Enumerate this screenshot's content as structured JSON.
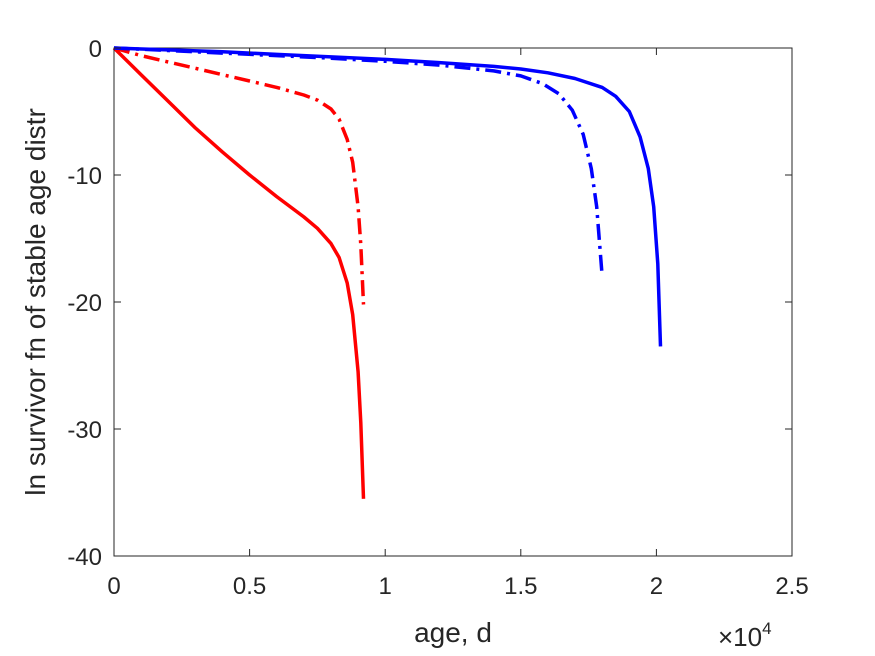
{
  "chart_data": {
    "type": "line",
    "title": "",
    "xlabel": "age, d",
    "ylabel": "ln survivor fn of stable age distr",
    "x_multiplier": {
      "base": "×10",
      "exponent": "4"
    },
    "xlim": [
      0,
      25000
    ],
    "ylim": [
      -40,
      0
    ],
    "xticks": [
      0,
      5000,
      10000,
      15000,
      20000,
      25000
    ],
    "xtick_labels": [
      "0",
      "0.5",
      "1",
      "1.5",
      "2",
      "2.5"
    ],
    "yticks": [
      -40,
      -30,
      -20,
      -10,
      0
    ],
    "ytick_labels": [
      "-40",
      "-30",
      "-20",
      "-10",
      "0"
    ],
    "grid": false,
    "legend": "none",
    "series": [
      {
        "color": "#ff0000",
        "style": "solid",
        "x": [
          0,
          1000,
          2000,
          3000,
          4000,
          5000,
          6000,
          7000,
          7500,
          8000,
          8300,
          8600,
          8800,
          9000,
          9100,
          9200
        ],
        "y": [
          0,
          -2.1,
          -4.2,
          -6.3,
          -8.2,
          -10.0,
          -11.7,
          -13.3,
          -14.2,
          -15.4,
          -16.5,
          -18.5,
          -21.0,
          -25.5,
          -29.5,
          -35.5
        ]
      },
      {
        "color": "#ff0000",
        "style": "dashdot",
        "x": [
          0,
          1000,
          2000,
          3000,
          4000,
          5000,
          6000,
          7000,
          7500,
          8000,
          8300,
          8600,
          8800,
          9000,
          9100,
          9200
        ],
        "y": [
          0,
          -0.6,
          -1.1,
          -1.6,
          -2.1,
          -2.6,
          -3.1,
          -3.7,
          -4.1,
          -4.8,
          -5.6,
          -7.2,
          -9.0,
          -12.5,
          -15.5,
          -20.2
        ]
      },
      {
        "color": "#0000ff",
        "style": "solid",
        "x": [
          0,
          2000,
          4000,
          6000,
          8000,
          10000,
          12000,
          14000,
          15000,
          16000,
          17000,
          18000,
          18500,
          19000,
          19400,
          19700,
          19900,
          20050,
          20150
        ],
        "y": [
          0,
          -0.15,
          -0.3,
          -0.5,
          -0.7,
          -0.9,
          -1.15,
          -1.45,
          -1.65,
          -1.95,
          -2.4,
          -3.1,
          -3.8,
          -5.0,
          -7.0,
          -9.5,
          -12.5,
          -17.0,
          -23.5
        ]
      },
      {
        "color": "#0000ff",
        "style": "dashdot",
        "x": [
          0,
          2000,
          4000,
          6000,
          8000,
          10000,
          12000,
          14000,
          15000,
          15800,
          16400,
          16900,
          17300,
          17600,
          17800,
          18000
        ],
        "y": [
          0,
          -0.2,
          -0.4,
          -0.6,
          -0.8,
          -1.05,
          -1.35,
          -1.8,
          -2.2,
          -2.8,
          -3.6,
          -4.9,
          -6.8,
          -9.5,
          -12.5,
          -18.0
        ]
      }
    ]
  }
}
